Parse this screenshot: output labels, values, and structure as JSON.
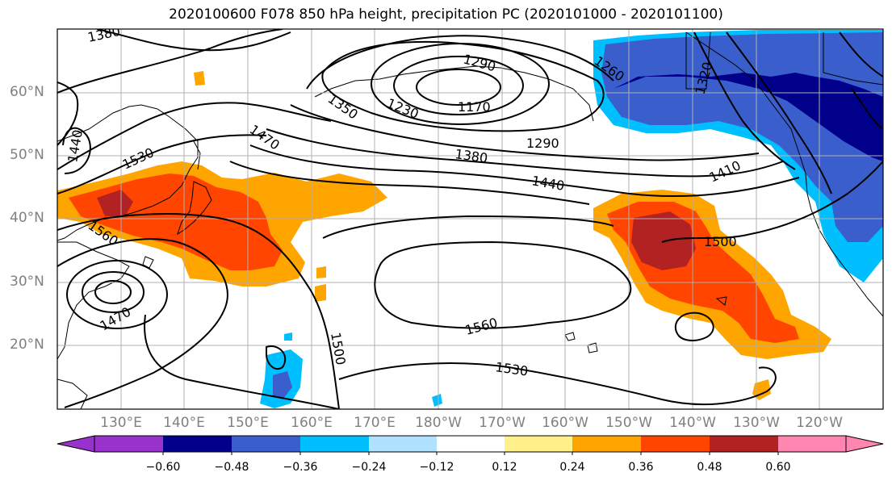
{
  "title": "2020100600 F078 850 hPa height, precipitation PC (2020101000 - 2020101100)",
  "lat_labels": [
    "60°N",
    "50°N",
    "40°N",
    "30°N",
    "20°N"
  ],
  "lon_labels": [
    "130°E",
    "140°E",
    "150°E",
    "160°E",
    "170°E",
    "180°W",
    "170°W",
    "160°W",
    "150°W",
    "140°W",
    "130°W",
    "120°W"
  ],
  "contour_labels": [
    "1380",
    "1290",
    "1260",
    "1320",
    "1350",
    "1230",
    "1170",
    "1470",
    "1440",
    "1530",
    "1290",
    "1380",
    "1440",
    "1410",
    "1560",
    "1500",
    "1470",
    "1560",
    "1500",
    "1530"
  ],
  "colorbar": {
    "ticks": [
      "−0.60",
      "−0.48",
      "−0.36",
      "−0.24",
      "−0.12",
      "0.12",
      "0.24",
      "0.36",
      "0.48",
      "0.60"
    ],
    "colors": [
      "#9932cc",
      "#00008b",
      "#3a5fcd",
      "#00bfff",
      "#b0e2ff",
      "#ffffff",
      "#fff08a",
      "#ffa500",
      "#ff4500",
      "#b22222",
      "#ff86b0"
    ]
  },
  "map_colors": {
    "ocean": "#ffffff",
    "coast": "#000000",
    "grid": "#b0b0b0",
    "contour": "#000000"
  }
}
